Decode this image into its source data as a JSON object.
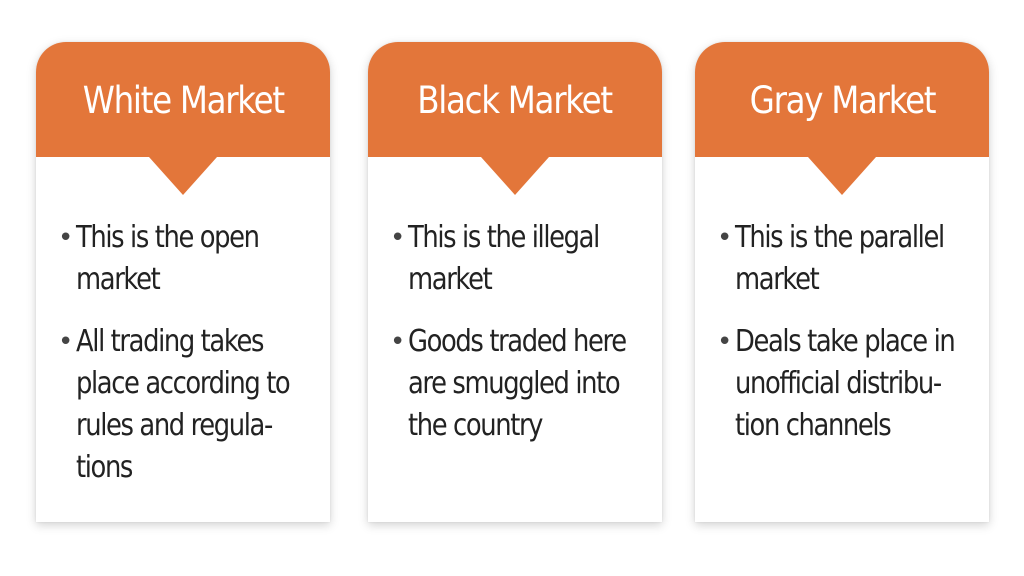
{
  "cards": [
    {
      "title": "White Market",
      "bullets": [
        "This is the open market",
        "All trading takes place according to rules and regula-tions"
      ]
    },
    {
      "title": "Black Market",
      "bullets": [
        "This is the illegal market",
        "Goods traded here are smuggled into the country"
      ]
    },
    {
      "title": "Gray Market",
      "bullets": [
        "This is the parallel market",
        "Deals take place in unofficial distribu-tion channels"
      ]
    }
  ],
  "colors": {
    "header": "#e3763a",
    "text": "#222222",
    "background": "#ffffff"
  }
}
